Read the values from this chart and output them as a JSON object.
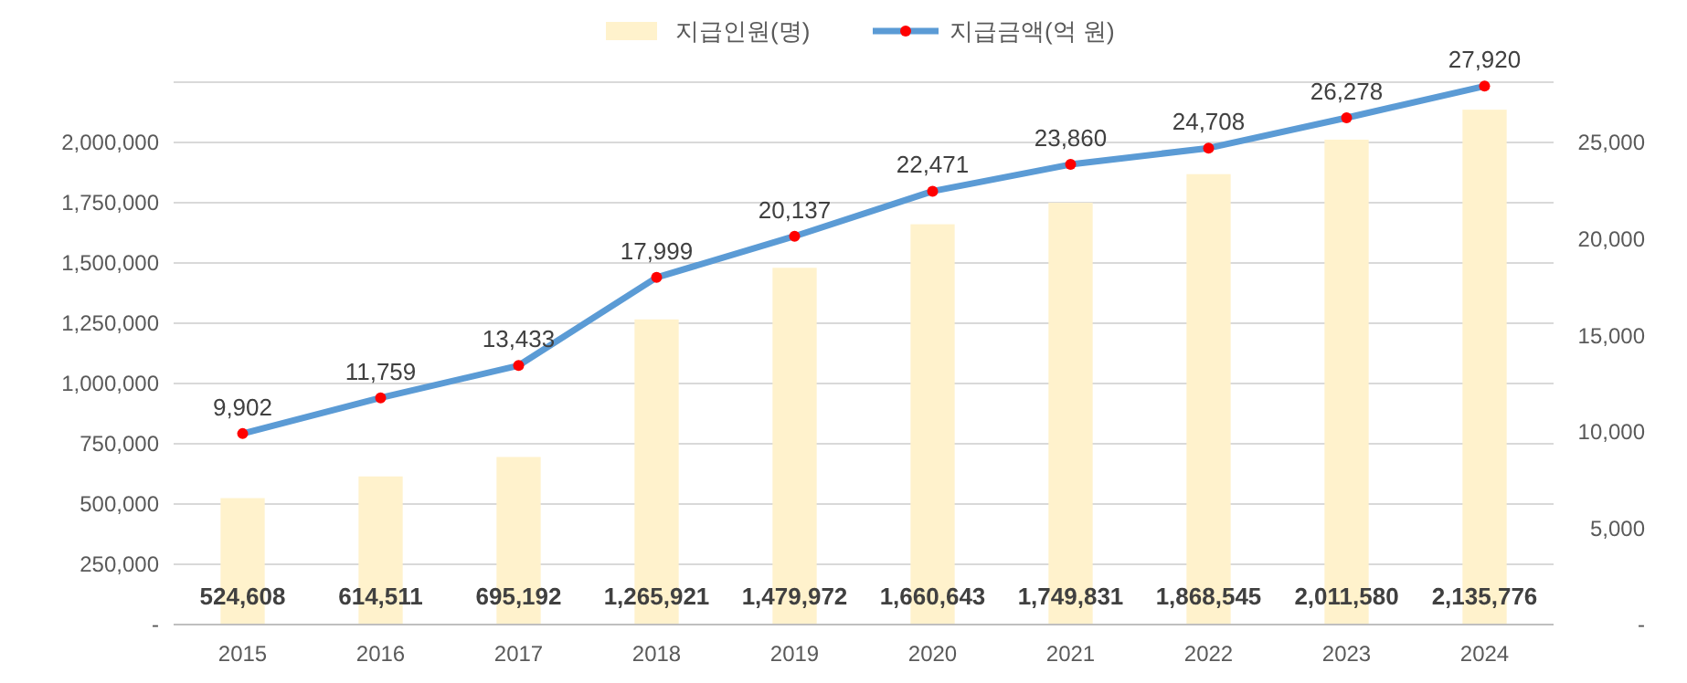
{
  "chart_data": {
    "type": "bar",
    "categories": [
      "2015",
      "2016",
      "2017",
      "2018",
      "2019",
      "2020",
      "2021",
      "2022",
      "2023",
      "2024"
    ],
    "series": [
      {
        "name": "지급인원(명)",
        "color": "#fff2cc",
        "values": [
          524608,
          614511,
          695192,
          1265921,
          1479972,
          1660643,
          1749831,
          1868545,
          2011580,
          2135776
        ],
        "value_labels": [
          "524,608",
          "614,511",
          "695,192",
          "1,265,921",
          "1,479,972",
          "1,660,643",
          "1,749,831",
          "1,868,545",
          "2,011,580",
          "2,135,776"
        ]
      },
      {
        "name": "지급금액(억 원)",
        "type": "line",
        "axis": "y2",
        "color": "#5b9bd5",
        "colors": [
          "#ff0000",
          "#ff0000",
          "#ff0000",
          "#ff0000",
          "#ff0000",
          "#ff0000",
          "#ff0000",
          "#ff0000",
          "#ff0000",
          "#ff0000"
        ],
        "values": [
          9902,
          11759,
          13433,
          17999,
          20137,
          22471,
          23860,
          24708,
          26278,
          27920
        ],
        "value_labels": [
          "9,902",
          "11,759",
          "13,433",
          "17,999",
          "20,137",
          "22,471",
          "23,860",
          "24,708",
          "26,278",
          "27,920"
        ]
      }
    ],
    "ylim": [
      0,
      2250000
    ],
    "yticks": [
      {
        "value": 0,
        "label": "-"
      },
      {
        "value": 250000,
        "label": "250,000"
      },
      {
        "value": 500000,
        "label": "500,000"
      },
      {
        "value": 750000,
        "label": "750,000"
      },
      {
        "value": 1000000,
        "label": "1,000,000"
      },
      {
        "value": 1250000,
        "label": "1,250,000"
      },
      {
        "value": 1500000,
        "label": "1,500,000"
      },
      {
        "value": 1750000,
        "label": "1,750,000"
      },
      {
        "value": 2000000,
        "label": "2,000,000"
      },
      {
        "value": 2250000,
        "label": null
      }
    ],
    "y2lim": [
      0,
      28125
    ],
    "y2ticks": [
      {
        "value": 0,
        "label": "-"
      },
      {
        "value": 5000,
        "label": "5,000"
      },
      {
        "value": 10000,
        "label": "10,000"
      },
      {
        "value": 15000,
        "label": "15,000"
      },
      {
        "value": 20000,
        "label": "20,000"
      },
      {
        "value": 25000,
        "label": "25,000"
      }
    ],
    "grid": "y",
    "legend": "top",
    "marker": "circle",
    "line_style": "solid"
  }
}
